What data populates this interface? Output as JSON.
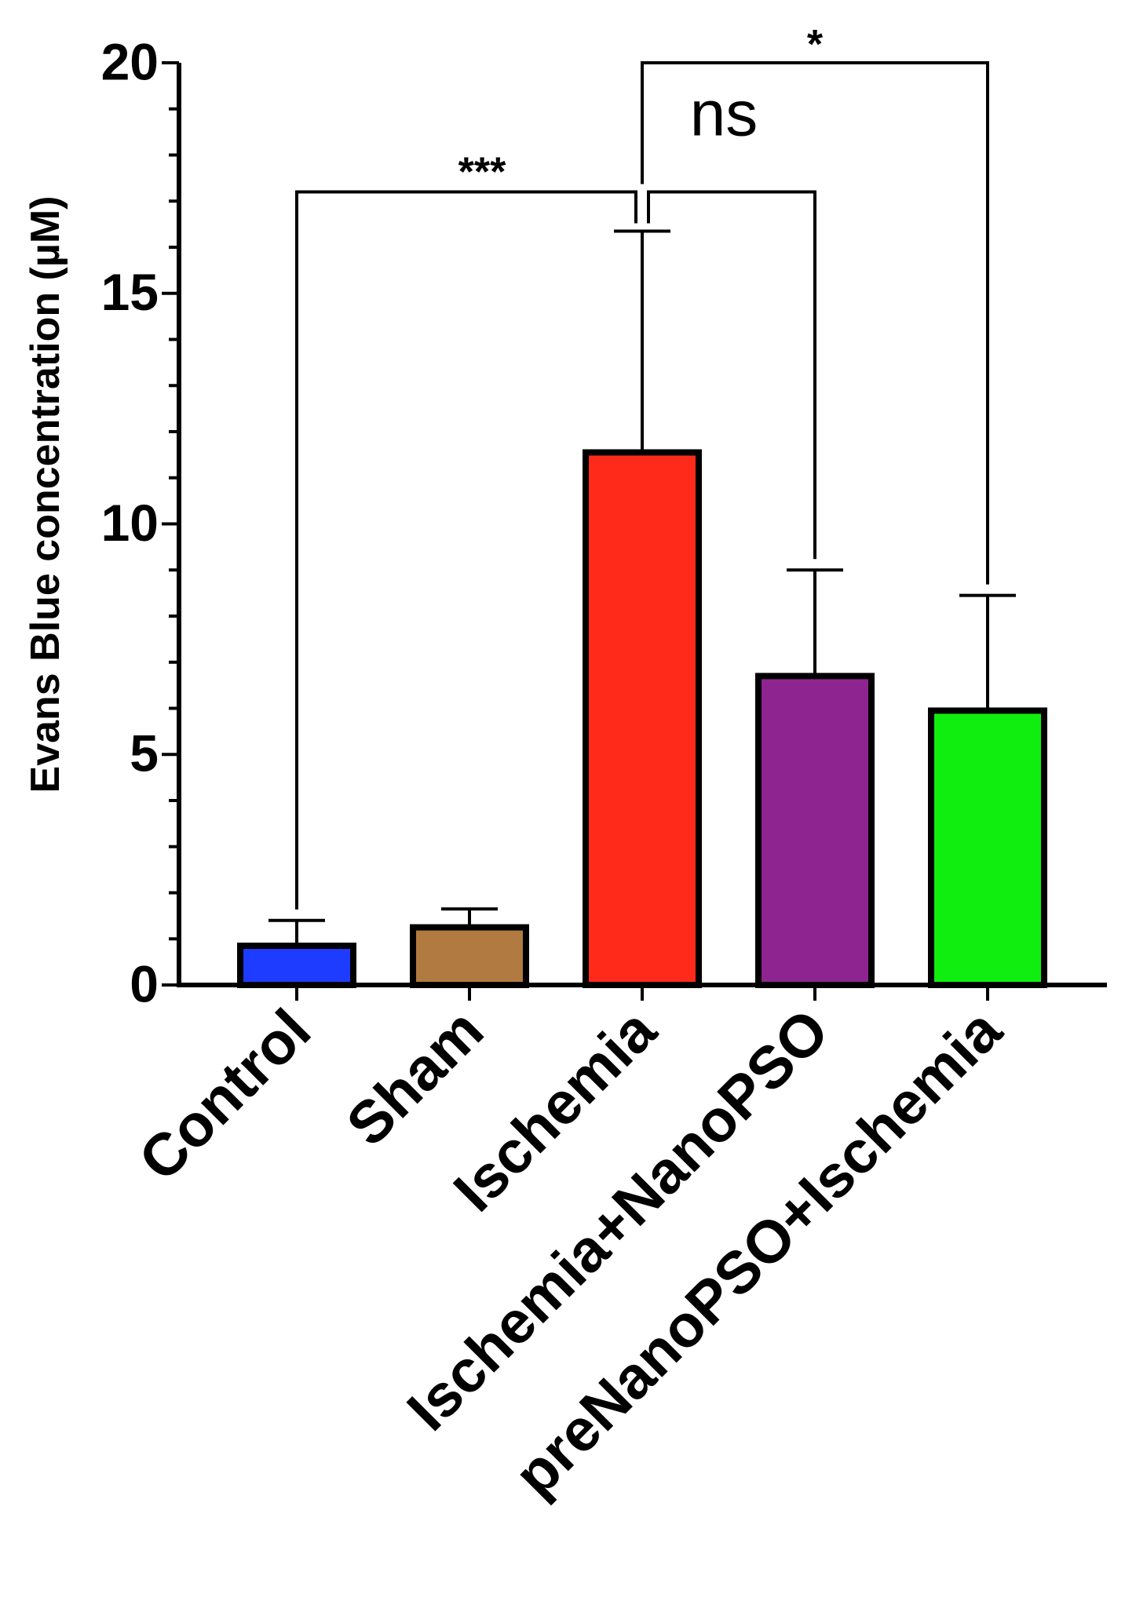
{
  "chart_data": {
    "type": "bar",
    "title": "",
    "xlabel": "",
    "ylabel": "Evans Blue concentration (µM)",
    "ylim": [
      0,
      20
    ],
    "yticks": [
      "0",
      "5",
      "10",
      "15",
      "20"
    ],
    "categories": [
      "Control",
      "Sham",
      "Ischemia",
      "Ischemia+NanoPSO",
      "preNanoPSO+Ischemia"
    ],
    "values": [
      0.85,
      1.25,
      11.55,
      6.7,
      5.95
    ],
    "errors": [
      0.55,
      0.4,
      4.8,
      2.3,
      2.5
    ],
    "colors": [
      "#1e3cff",
      "#b07a40",
      "#ff2a1a",
      "#8e2490",
      "#10ee10"
    ],
    "significance": [
      {
        "from": 0,
        "to": 2,
        "label": "***",
        "y": 17.2
      },
      {
        "from": 2,
        "to": 3,
        "label": "ns",
        "y": 17.2
      },
      {
        "from": 2,
        "to": 4,
        "label": "*",
        "y": 20.0
      }
    ]
  }
}
